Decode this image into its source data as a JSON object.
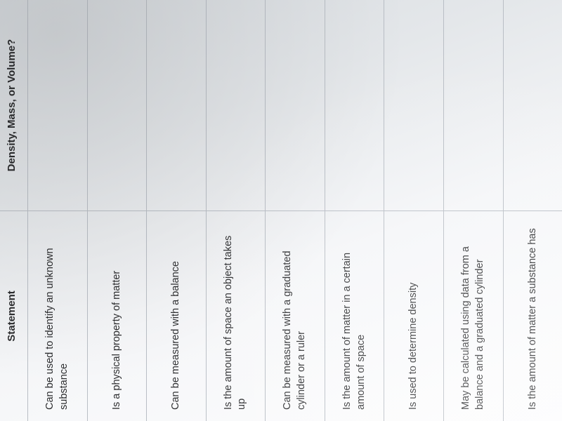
{
  "table": {
    "type": "table",
    "columns": [
      "Statement",
      "Density, Mass, or Volume?"
    ],
    "col_widths_pct": [
      50,
      50
    ],
    "border_color": "#b9bec5",
    "text_color": "#2c2d2f",
    "header_fontsize_pt": 11,
    "header_fontweight": 700,
    "cell_fontsize_pt": 11,
    "background_gradient": [
      "#d8dce0",
      "#e4e7ea",
      "#f5f6f8",
      "#fdfdfe"
    ],
    "rows": [
      {
        "statement": "Can be used to identify an unknown substance",
        "answer": ""
      },
      {
        "statement": "Is a physical property of matter",
        "answer": ""
      },
      {
        "statement": "Can be measured with a balance",
        "answer": ""
      },
      {
        "statement": "Is the amount of space an object takes up",
        "answer": ""
      },
      {
        "statement": "Can be measured with a graduated cylinder or a ruler",
        "answer": ""
      },
      {
        "statement": "Is the amount of matter in a certain amount of space",
        "answer": ""
      },
      {
        "statement": "Is used to determine density",
        "answer": ""
      },
      {
        "statement": "May be calculated using data from a balance and a graduated cylinder",
        "answer": ""
      },
      {
        "statement": "Is the amount of matter a substance has",
        "answer": ""
      }
    ]
  }
}
